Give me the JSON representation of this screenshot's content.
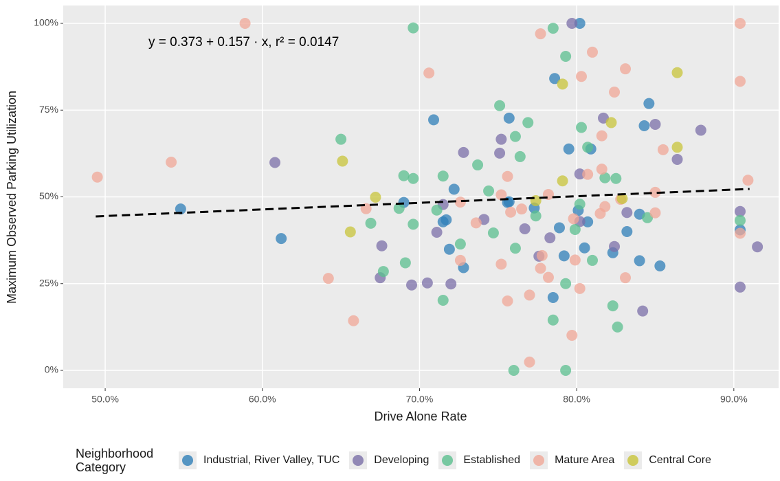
{
  "chart_data": {
    "type": "scatter",
    "x_label": "Drive Alone Rate",
    "y_label": "Maximum Observed Parking Utilization",
    "annotation": "y = 0.373 + 0.157 · x,  r² = 0.0147",
    "legend_title": "Neighborhood Category",
    "legend_position": "bottom",
    "grid": true,
    "xlim": [
      0.4733,
      0.9285
    ],
    "ylim": [
      -0.0515,
      1.0515
    ],
    "xticks": [
      {
        "value": 0.5,
        "label": "50.0%"
      },
      {
        "value": 0.6,
        "label": "60.0%"
      },
      {
        "value": 0.7,
        "label": "70.0%"
      },
      {
        "value": 0.8,
        "label": "80.0%"
      },
      {
        "value": 0.9,
        "label": "90.0%"
      }
    ],
    "yticks": [
      {
        "value": 0,
        "label": "0%"
      },
      {
        "value": 0.25,
        "label": "25%"
      },
      {
        "value": 0.5,
        "label": "50%"
      },
      {
        "value": 0.75,
        "label": "75%"
      },
      {
        "value": 1,
        "label": "100%"
      }
    ],
    "trend_line": {
      "x": [
        0.494,
        0.91
      ],
      "values": [
        0.4436,
        0.5228
      ]
    },
    "series": [
      {
        "name": "Industrial, River Valley, TUC",
        "color": "#2f7fb8",
        "x": [
          0.548,
          0.612,
          0.709,
          0.802,
          0.786,
          0.757,
          0.795,
          0.809,
          0.846,
          0.843,
          0.722,
          0.69,
          0.715,
          0.717,
          0.756,
          0.757,
          0.773,
          0.789,
          0.801,
          0.807,
          0.805,
          0.792,
          0.719,
          0.728,
          0.823,
          0.832,
          0.84,
          0.84,
          0.853,
          0.785,
          0.904
        ],
        "values": [
          0.465,
          0.38,
          0.722,
          1.0,
          0.841,
          0.727,
          0.638,
          0.638,
          0.769,
          0.705,
          0.522,
          0.484,
          0.428,
          0.434,
          0.484,
          0.486,
          0.468,
          0.411,
          0.461,
          0.428,
          0.353,
          0.33,
          0.349,
          0.296,
          0.339,
          0.4,
          0.45,
          0.316,
          0.301,
          0.21,
          0.405
        ]
      },
      {
        "name": "Developing",
        "color": "#7b6fa8",
        "x": [
          0.608,
          0.676,
          0.675,
          0.695,
          0.705,
          0.711,
          0.715,
          0.72,
          0.728,
          0.741,
          0.751,
          0.752,
          0.767,
          0.776,
          0.783,
          0.797,
          0.802,
          0.802,
          0.817,
          0.824,
          0.832,
          0.842,
          0.85,
          0.864,
          0.879,
          0.904,
          0.904,
          0.915
        ],
        "values": [
          0.599,
          0.359,
          0.267,
          0.246,
          0.252,
          0.398,
          0.478,
          0.249,
          0.628,
          0.435,
          0.626,
          0.666,
          0.408,
          0.329,
          0.382,
          1.0,
          0.566,
          0.429,
          0.727,
          0.357,
          0.455,
          0.171,
          0.709,
          0.608,
          0.692,
          0.458,
          0.24,
          0.356
        ]
      },
      {
        "name": "Established",
        "color": "#5bbf8f",
        "x": [
          0.65,
          0.669,
          0.677,
          0.687,
          0.69,
          0.691,
          0.696,
          0.696,
          0.696,
          0.711,
          0.715,
          0.715,
          0.726,
          0.737,
          0.744,
          0.747,
          0.751,
          0.761,
          0.761,
          0.76,
          0.764,
          0.769,
          0.774,
          0.785,
          0.785,
          0.793,
          0.793,
          0.793,
          0.799,
          0.802,
          0.803,
          0.807,
          0.81,
          0.818,
          0.823,
          0.825,
          0.826,
          0.845,
          0.904
        ],
        "values": [
          0.666,
          0.424,
          0.285,
          0.467,
          0.561,
          0.31,
          0.987,
          0.553,
          0.421,
          0.462,
          0.56,
          0.202,
          0.364,
          0.592,
          0.517,
          0.396,
          0.763,
          0.674,
          0.352,
          0.0,
          0.616,
          0.714,
          0.445,
          0.986,
          0.145,
          0.905,
          0.25,
          0.0,
          0.406,
          0.479,
          0.7,
          0.643,
          0.317,
          0.555,
          0.186,
          0.553,
          0.125,
          0.44,
          0.432
        ]
      },
      {
        "name": "Mature Area",
        "color": "#f0a797",
        "x": [
          0.495,
          0.542,
          0.589,
          0.642,
          0.658,
          0.666,
          0.706,
          0.726,
          0.726,
          0.736,
          0.752,
          0.752,
          0.756,
          0.756,
          0.758,
          0.765,
          0.77,
          0.77,
          0.777,
          0.777,
          0.778,
          0.782,
          0.782,
          0.797,
          0.798,
          0.799,
          0.802,
          0.803,
          0.807,
          0.81,
          0.815,
          0.816,
          0.816,
          0.818,
          0.824,
          0.828,
          0.831,
          0.831,
          0.85,
          0.85,
          0.855,
          0.904,
          0.904,
          0.904,
          0.909
        ],
        "values": [
          0.557,
          0.6,
          1.0,
          0.265,
          0.143,
          0.466,
          0.857,
          0.317,
          0.485,
          0.425,
          0.506,
          0.306,
          0.559,
          0.2,
          0.456,
          0.465,
          0.217,
          0.024,
          0.97,
          0.294,
          0.331,
          0.507,
          0.268,
          0.101,
          0.437,
          0.318,
          0.236,
          0.847,
          0.565,
          0.917,
          0.452,
          0.676,
          0.58,
          0.472,
          0.802,
          0.493,
          0.869,
          0.267,
          0.513,
          0.454,
          0.636,
          1.0,
          0.833,
          0.395,
          0.548
        ]
      },
      {
        "name": "Central Core",
        "color": "#c8c43a",
        "x": [
          0.651,
          0.656,
          0.672,
          0.774,
          0.791,
          0.791,
          0.822,
          0.829,
          0.864,
          0.864
        ],
        "values": [
          0.603,
          0.399,
          0.499,
          0.489,
          0.825,
          0.546,
          0.714,
          0.495,
          0.858,
          0.643
        ]
      }
    ]
  }
}
